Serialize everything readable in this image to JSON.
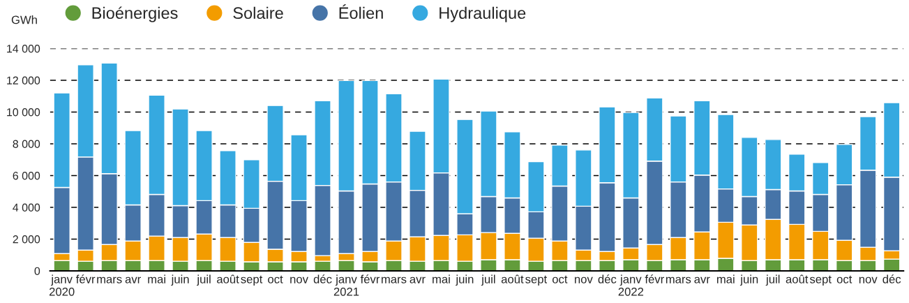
{
  "chart_data": {
    "type": "bar",
    "stacked": true,
    "ylabel": "GWh",
    "categories": [
      "janv\n2020",
      "févr",
      "mars",
      "avr",
      "mai",
      "juin",
      "juil",
      "août",
      "sept",
      "oct",
      "nov",
      "déc",
      "janv\n2021",
      "févr",
      "mars",
      "avr",
      "mai",
      "juin",
      "juil",
      "août",
      "sept",
      "oct",
      "nov",
      "déc",
      "janv\n2022",
      "févr",
      "mars",
      "avr",
      "mai",
      "juin",
      "juil",
      "août",
      "sept",
      "oct",
      "nov",
      "déc"
    ],
    "series": [
      {
        "name": "Bioénergies",
        "color": "#629c3b",
        "values": [
          650,
          610,
          650,
          650,
          650,
          610,
          650,
          610,
          570,
          570,
          570,
          610,
          650,
          570,
          650,
          610,
          650,
          610,
          700,
          700,
          610,
          650,
          650,
          650,
          700,
          650,
          700,
          700,
          790,
          650,
          700,
          700,
          700,
          650,
          650,
          740
        ]
      },
      {
        "name": "Solaire",
        "color": "#f39c00",
        "values": [
          440,
          700,
          1010,
          1230,
          1540,
          1490,
          1670,
          1490,
          1220,
          790,
          650,
          350,
          440,
          650,
          1230,
          1530,
          1580,
          1660,
          1710,
          1660,
          1450,
          1230,
          660,
          570,
          740,
          1010,
          1400,
          1750,
          2270,
          2240,
          2540,
          2230,
          1790,
          1270,
          840,
          530
        ]
      },
      {
        "name": "Éolien",
        "color": "#4674a8",
        "values": [
          4160,
          5860,
          4460,
          2270,
          2620,
          2010,
          2100,
          2050,
          2150,
          4280,
          3200,
          4420,
          3940,
          4250,
          3720,
          2930,
          3940,
          1320,
          2270,
          2230,
          1660,
          3460,
          2760,
          4330,
          3150,
          5250,
          3500,
          3580,
          2100,
          1790,
          1880,
          2100,
          2320,
          3500,
          4850,
          4630
        ]
      },
      {
        "name": "Hydraulique",
        "color": "#36a9e0",
        "values": [
          5950,
          5800,
          6960,
          4680,
          6250,
          6080,
          4410,
          3420,
          3060,
          4770,
          4150,
          5330,
          6950,
          6510,
          5550,
          3720,
          5900,
          5940,
          5380,
          4160,
          3150,
          2580,
          3540,
          4770,
          5380,
          3980,
          4150,
          4680,
          4680,
          3720,
          3150,
          2320,
          2010,
          2540,
          3370,
          4690
        ]
      }
    ],
    "ylim": [
      0,
      14000
    ],
    "yticks": [
      0,
      {
        "value": 2000,
        "label": "2 000"
      },
      {
        "value": 4000,
        "label": "4 000"
      },
      {
        "value": 6000,
        "label": "6 000"
      },
      {
        "value": 8000,
        "label": "8 000"
      },
      {
        "value": 10000,
        "label": "10 000"
      },
      {
        "value": 12000,
        "label": "12 000"
      },
      {
        "value": 14000,
        "label": "14 000"
      }
    ],
    "grid": "y",
    "legend": "top left",
    "marker": "circle"
  }
}
